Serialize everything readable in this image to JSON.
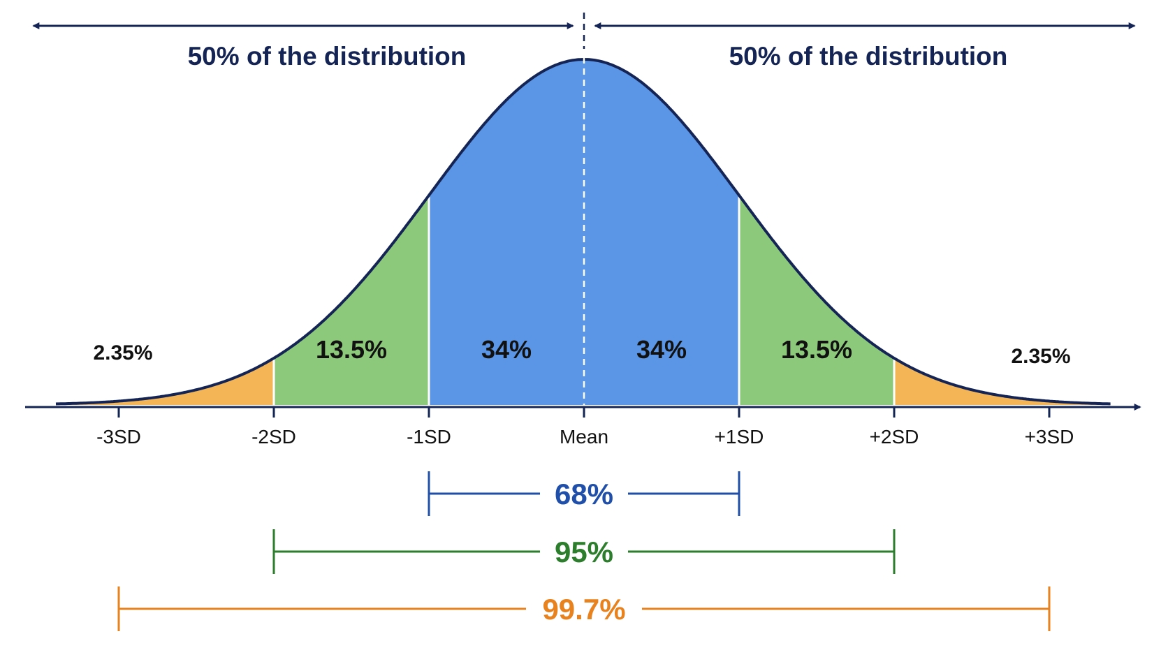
{
  "colors": {
    "outline": "#142454",
    "center_band": "#5b96e6",
    "mid_band": "#8dc97b",
    "outer_band": "#f4b556",
    "range_68": "#1f4fa8",
    "range_95": "#2c7d2c",
    "range_997": "#e8821e",
    "text": "#111111",
    "divider": "#ffffff"
  },
  "header": {
    "left_label": "50% of the distribution",
    "right_label": "50% of the distribution"
  },
  "bands": [
    {
      "id": "left-outer",
      "from": -3,
      "to": -2,
      "label": "2.35%",
      "color": "outer"
    },
    {
      "id": "left-mid",
      "from": -2,
      "to": -1,
      "label": "13.5%",
      "color": "mid"
    },
    {
      "id": "left-center",
      "from": -1,
      "to": 0,
      "label": "34%",
      "color": "center"
    },
    {
      "id": "right-center",
      "from": 0,
      "to": 1,
      "label": "34%",
      "color": "center"
    },
    {
      "id": "right-mid",
      "from": 1,
      "to": 2,
      "label": "13.5%",
      "color": "mid"
    },
    {
      "id": "right-outer",
      "from": 2,
      "to": 3,
      "label": "2.35%",
      "color": "outer"
    }
  ],
  "ticks": [
    {
      "value": -3,
      "label": "-3SD"
    },
    {
      "value": -2,
      "label": "-2SD"
    },
    {
      "value": -1,
      "label": "-1SD"
    },
    {
      "value": 0,
      "label": "Mean"
    },
    {
      "value": 1,
      "label": "+1SD"
    },
    {
      "value": 2,
      "label": "+2SD"
    },
    {
      "value": 3,
      "label": "+3SD"
    }
  ],
  "ranges": [
    {
      "id": "68",
      "from": -1,
      "to": 1,
      "label": "68%",
      "color": "range_68"
    },
    {
      "id": "95",
      "from": -2,
      "to": 2,
      "label": "95%",
      "color": "range_95"
    },
    {
      "id": "997",
      "from": -3,
      "to": 3,
      "label": "99.7%",
      "color": "range_997"
    }
  ]
}
